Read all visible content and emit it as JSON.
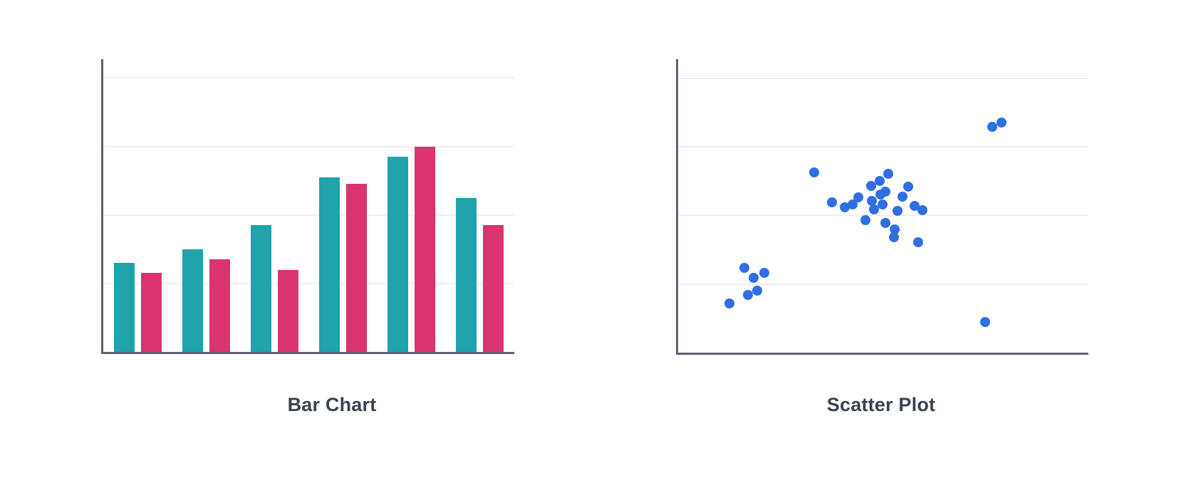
{
  "page": {
    "background": "#FFFFFF",
    "title_color": "#3A4150",
    "axis_color": "#5C6370",
    "grid_color": "#F0F0F2"
  },
  "chart_data": [
    {
      "id": "bar",
      "type": "bar",
      "title": "Bar Chart",
      "xlabel": "",
      "ylabel": "",
      "tick_labels_visible": false,
      "legend": false,
      "grid": true,
      "gridlines": [
        20,
        40,
        60,
        80
      ],
      "ylim": [
        0,
        85.5
      ],
      "series": [
        {
          "name": "teal-series",
          "color": "#20A3AA",
          "values": [
            26,
            30,
            37,
            51,
            57,
            45
          ]
        },
        {
          "name": "pink-series",
          "color": "#D93470",
          "values": [
            23,
            27,
            24,
            49,
            60,
            37
          ]
        }
      ]
    },
    {
      "id": "scatter",
      "type": "scatter",
      "title": "Scatter Plot",
      "xlabel": "",
      "ylabel": "",
      "tick_labels_visible": false,
      "legend": false,
      "grid": true,
      "gridlines": [
        20,
        40,
        60,
        80
      ],
      "xlim": [
        0,
        100
      ],
      "ylim": [
        0,
        85.5
      ],
      "point_color": "#306FE3",
      "points": [
        [
          33.2,
          52.6
        ],
        [
          47.0,
          48.6
        ],
        [
          49.1,
          50.1
        ],
        [
          51.2,
          52.0
        ],
        [
          56.1,
          48.4
        ],
        [
          37.5,
          43.8
        ],
        [
          40.6,
          42.4
        ],
        [
          42.5,
          43.2
        ],
        [
          43.9,
          45.3
        ],
        [
          47.2,
          44.3
        ],
        [
          47.7,
          41.8
        ],
        [
          49.3,
          46.1
        ],
        [
          50.5,
          47.0
        ],
        [
          49.8,
          43.2
        ],
        [
          54.7,
          45.5
        ],
        [
          53.5,
          41.4
        ],
        [
          57.6,
          42.8
        ],
        [
          59.5,
          41.6
        ],
        [
          45.7,
          38.6
        ],
        [
          50.5,
          37.8
        ],
        [
          52.8,
          35.9
        ],
        [
          52.6,
          33.7
        ],
        [
          58.5,
          32.2
        ],
        [
          76.6,
          65.7
        ],
        [
          78.8,
          67.1
        ],
        [
          16.1,
          24.7
        ],
        [
          21.0,
          23.3
        ],
        [
          18.4,
          21.8
        ],
        [
          19.3,
          18.1
        ],
        [
          17.0,
          16.8
        ],
        [
          12.5,
          14.3
        ],
        [
          74.8,
          8.9
        ]
      ]
    }
  ]
}
